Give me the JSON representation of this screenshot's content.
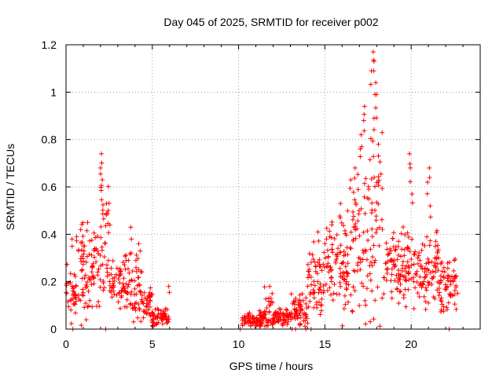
{
  "chart_data": {
    "type": "scatter",
    "title": "Day 045 of 2025, SRMTID for receiver p002",
    "xlabel": "GPS time / hours",
    "ylabel": "SRMTID / TECUs",
    "xlim": [
      0,
      24
    ],
    "ylim": [
      0,
      1.2
    ],
    "x_ticks": [
      0,
      5,
      10,
      15,
      20
    ],
    "x_tick_labels": [
      "0",
      "5",
      "10",
      "15",
      "20"
    ],
    "y_ticks": [
      0,
      0.2,
      0.4,
      0.6,
      0.8,
      1.0,
      1.2
    ],
    "y_tick_labels": [
      "0",
      "0.2",
      "0.4",
      "0.6",
      "0.8",
      "1",
      "1.2"
    ],
    "grid": true,
    "marker": "plus",
    "marker_color": "#ff0000",
    "series": [
      {
        "name": "SRMTID",
        "segments": [
          {
            "t0": 0.0,
            "t1": 0.6,
            "level": 0.16,
            "spread": 0.08
          },
          {
            "t0": 0.6,
            "t1": 1.5,
            "level": 0.22,
            "spread": 0.16
          },
          {
            "t0": 1.5,
            "t1": 2.0,
            "level": 0.28,
            "spread": 0.14
          },
          {
            "t0": 2.0,
            "t1": 2.6,
            "level": 0.38,
            "spread": 0.2
          },
          {
            "t0": 2.6,
            "t1": 3.6,
            "level": 0.2,
            "spread": 0.08
          },
          {
            "t0": 3.6,
            "t1": 4.4,
            "level": 0.18,
            "spread": 0.12
          },
          {
            "t0": 4.4,
            "t1": 5.0,
            "level": 0.1,
            "spread": 0.06
          },
          {
            "t0": 5.0,
            "t1": 6.0,
            "level": 0.05,
            "spread": 0.03
          },
          {
            "t0": 10.2,
            "t1": 11.5,
            "level": 0.04,
            "spread": 0.025
          },
          {
            "t0": 11.5,
            "t1": 12.0,
            "level": 0.08,
            "spread": 0.08
          },
          {
            "t0": 12.0,
            "t1": 13.0,
            "level": 0.05,
            "spread": 0.03
          },
          {
            "t0": 13.0,
            "t1": 14.0,
            "level": 0.07,
            "spread": 0.05
          },
          {
            "t0": 14.0,
            "t1": 15.0,
            "level": 0.2,
            "spread": 0.1
          },
          {
            "t0": 15.0,
            "t1": 16.5,
            "level": 0.27,
            "spread": 0.14
          },
          {
            "t0": 16.5,
            "t1": 17.3,
            "level": 0.35,
            "spread": 0.2
          },
          {
            "t0": 17.3,
            "t1": 18.4,
            "level": 0.45,
            "spread": 0.3
          },
          {
            "t0": 18.4,
            "t1": 19.5,
            "level": 0.27,
            "spread": 0.1
          },
          {
            "t0": 19.5,
            "t1": 20.2,
            "level": 0.28,
            "spread": 0.14
          },
          {
            "t0": 20.2,
            "t1": 21.0,
            "level": 0.22,
            "spread": 0.1
          },
          {
            "t0": 21.0,
            "t1": 21.6,
            "level": 0.28,
            "spread": 0.14
          },
          {
            "t0": 21.6,
            "t1": 22.7,
            "level": 0.18,
            "spread": 0.08
          }
        ],
        "peaks": [
          {
            "x": 0.35,
            "y": 0.38
          },
          {
            "x": 0.85,
            "y": 0.42
          },
          {
            "x": 1.25,
            "y": 0.45
          },
          {
            "x": 2.05,
            "y": 0.74
          },
          {
            "x": 2.0,
            "y": 0.68
          },
          {
            "x": 2.1,
            "y": 0.63
          },
          {
            "x": 2.35,
            "y": 0.53
          },
          {
            "x": 2.45,
            "y": 0.5
          },
          {
            "x": 3.75,
            "y": 0.43
          },
          {
            "x": 4.05,
            "y": 0.29
          },
          {
            "x": 5.95,
            "y": 0.18
          },
          {
            "x": 11.8,
            "y": 0.18
          },
          {
            "x": 14.6,
            "y": 0.41
          },
          {
            "x": 15.4,
            "y": 0.44
          },
          {
            "x": 15.9,
            "y": 0.53
          },
          {
            "x": 16.5,
            "y": 0.63
          },
          {
            "x": 16.75,
            "y": 0.68
          },
          {
            "x": 17.05,
            "y": 0.76
          },
          {
            "x": 17.1,
            "y": 0.82
          },
          {
            "x": 17.25,
            "y": 0.88
          },
          {
            "x": 17.3,
            "y": 0.94
          },
          {
            "x": 17.7,
            "y": 1.09
          },
          {
            "x": 17.85,
            "y": 1.13
          },
          {
            "x": 17.8,
            "y": 1.17
          },
          {
            "x": 17.95,
            "y": 1.04
          },
          {
            "x": 17.9,
            "y": 0.99
          },
          {
            "x": 17.85,
            "y": 0.89
          },
          {
            "x": 18.1,
            "y": 0.78
          },
          {
            "x": 19.9,
            "y": 0.74
          },
          {
            "x": 19.95,
            "y": 0.68
          },
          {
            "x": 20.05,
            "y": 0.57
          },
          {
            "x": 21.05,
            "y": 0.68
          },
          {
            "x": 20.95,
            "y": 0.62
          },
          {
            "x": 21.1,
            "y": 0.52
          },
          {
            "x": 22.5,
            "y": 0.29
          }
        ],
        "zero_marks": [
          0.4,
          2.3,
          10.1,
          13.1,
          13.3,
          13.9,
          14.2,
          22.2
        ]
      }
    ]
  }
}
